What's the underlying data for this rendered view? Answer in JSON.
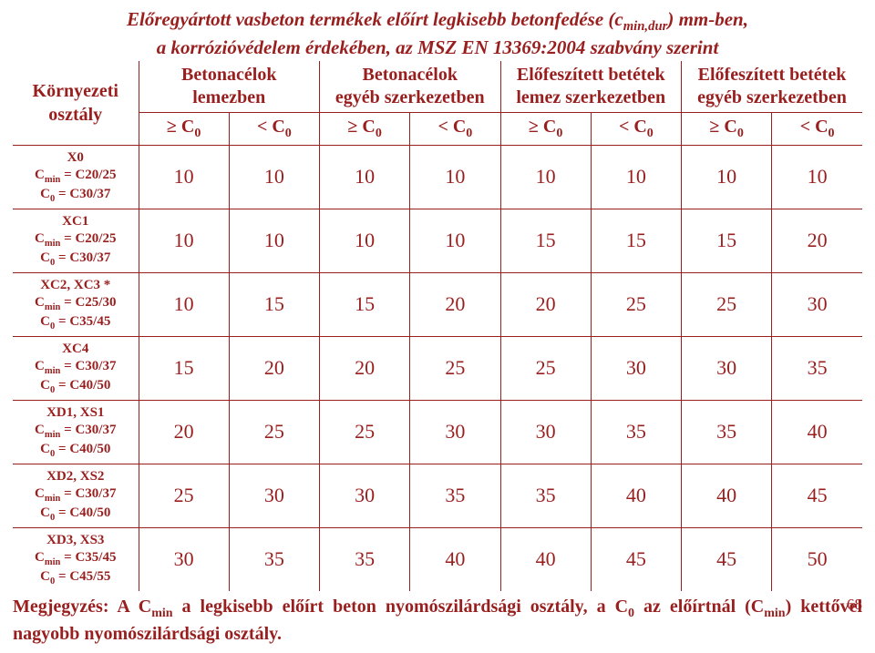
{
  "title": {
    "line1_a": "Előregyártott vasbeton termékek",
    "line1_b": " előírt legkisebb betonfedése (c",
    "line1_sub": "min,dur",
    "line1_c": ") mm-ben,",
    "line2": "a korrózióvédelem érdekében, az MSZ EN 13369:2004 szabvány szerint"
  },
  "headers": {
    "env1": "Környezeti",
    "env2": "osztály",
    "g1a": "Betonacélok",
    "g1b": "lemezben",
    "g2a": "Betonacélok",
    "g2b": "egyéb szerkezetben",
    "g3a": "Előfeszített betétek",
    "g3b": "lemez szerkezetben",
    "g4a": "Előfeszített betétek",
    "g4b": "egyéb szerkezetben"
  },
  "sub": {
    "ge": "≥ C",
    "lt": "< C",
    "zero": "0"
  },
  "rowlabels": [
    {
      "l1": "X0",
      "l2a": "C",
      "l2sub": "min",
      "l2b": " = C20/25",
      "l3a": "C",
      "l3sub": "0",
      "l3b": " = C30/37"
    },
    {
      "l1": "XC1",
      "l2a": "C",
      "l2sub": "min",
      "l2b": " = C20/25",
      "l3a": "C",
      "l3sub": "0",
      "l3b": " = C30/37"
    },
    {
      "l1": "XC2, XC3 *",
      "l2a": "C",
      "l2sub": "min",
      "l2b": " = C25/30",
      "l3a": "C",
      "l3sub": "0",
      "l3b": " = C35/45"
    },
    {
      "l1": "XC4",
      "l2a": "C",
      "l2sub": "min",
      "l2b": " = C30/37",
      "l3a": "C",
      "l3sub": "0",
      "l3b": " = C40/50"
    },
    {
      "l1": "XD1, XS1",
      "l2a": "C",
      "l2sub": "min",
      "l2b": " = C30/37",
      "l3a": "C",
      "l3sub": "0",
      "l3b": " = C40/50"
    },
    {
      "l1": "XD2, XS2",
      "l2a": "C",
      "l2sub": "min",
      "l2b": " = C30/37",
      "l3a": "C",
      "l3sub": "0",
      "l3b": " = C40/50"
    },
    {
      "l1": "XD3, XS3",
      "l2a": "C",
      "l2sub": "min",
      "l2b": " = C35/45",
      "l3a": "C",
      "l3sub": "0",
      "l3b": " = C45/55"
    }
  ],
  "data": [
    [
      "10",
      "10",
      "10",
      "10",
      "10",
      "10",
      "10",
      "10"
    ],
    [
      "10",
      "10",
      "10",
      "10",
      "15",
      "15",
      "15",
      "20"
    ],
    [
      "10",
      "15",
      "15",
      "20",
      "20",
      "25",
      "25",
      "30"
    ],
    [
      "15",
      "20",
      "20",
      "25",
      "25",
      "30",
      "30",
      "35"
    ],
    [
      "20",
      "25",
      "25",
      "30",
      "30",
      "35",
      "35",
      "40"
    ],
    [
      "25",
      "30",
      "30",
      "35",
      "35",
      "40",
      "40",
      "45"
    ],
    [
      "30",
      "35",
      "35",
      "40",
      "40",
      "45",
      "45",
      "50"
    ]
  ],
  "note": {
    "a": "Megjegyzés: A C",
    "a_sub": "min",
    "b": " a legkisebb előírt beton nyomószilárdsági osztály, a C",
    "b_sub": "0",
    "c": " az előírtnál (C",
    "c_sub": "min",
    "d": ") kettővel nagyobb nyomószilárdsági osztály."
  },
  "pagenum": "68",
  "colors": {
    "text": "#991f1f",
    "border": "#991f1f",
    "background": "#ffffff"
  }
}
